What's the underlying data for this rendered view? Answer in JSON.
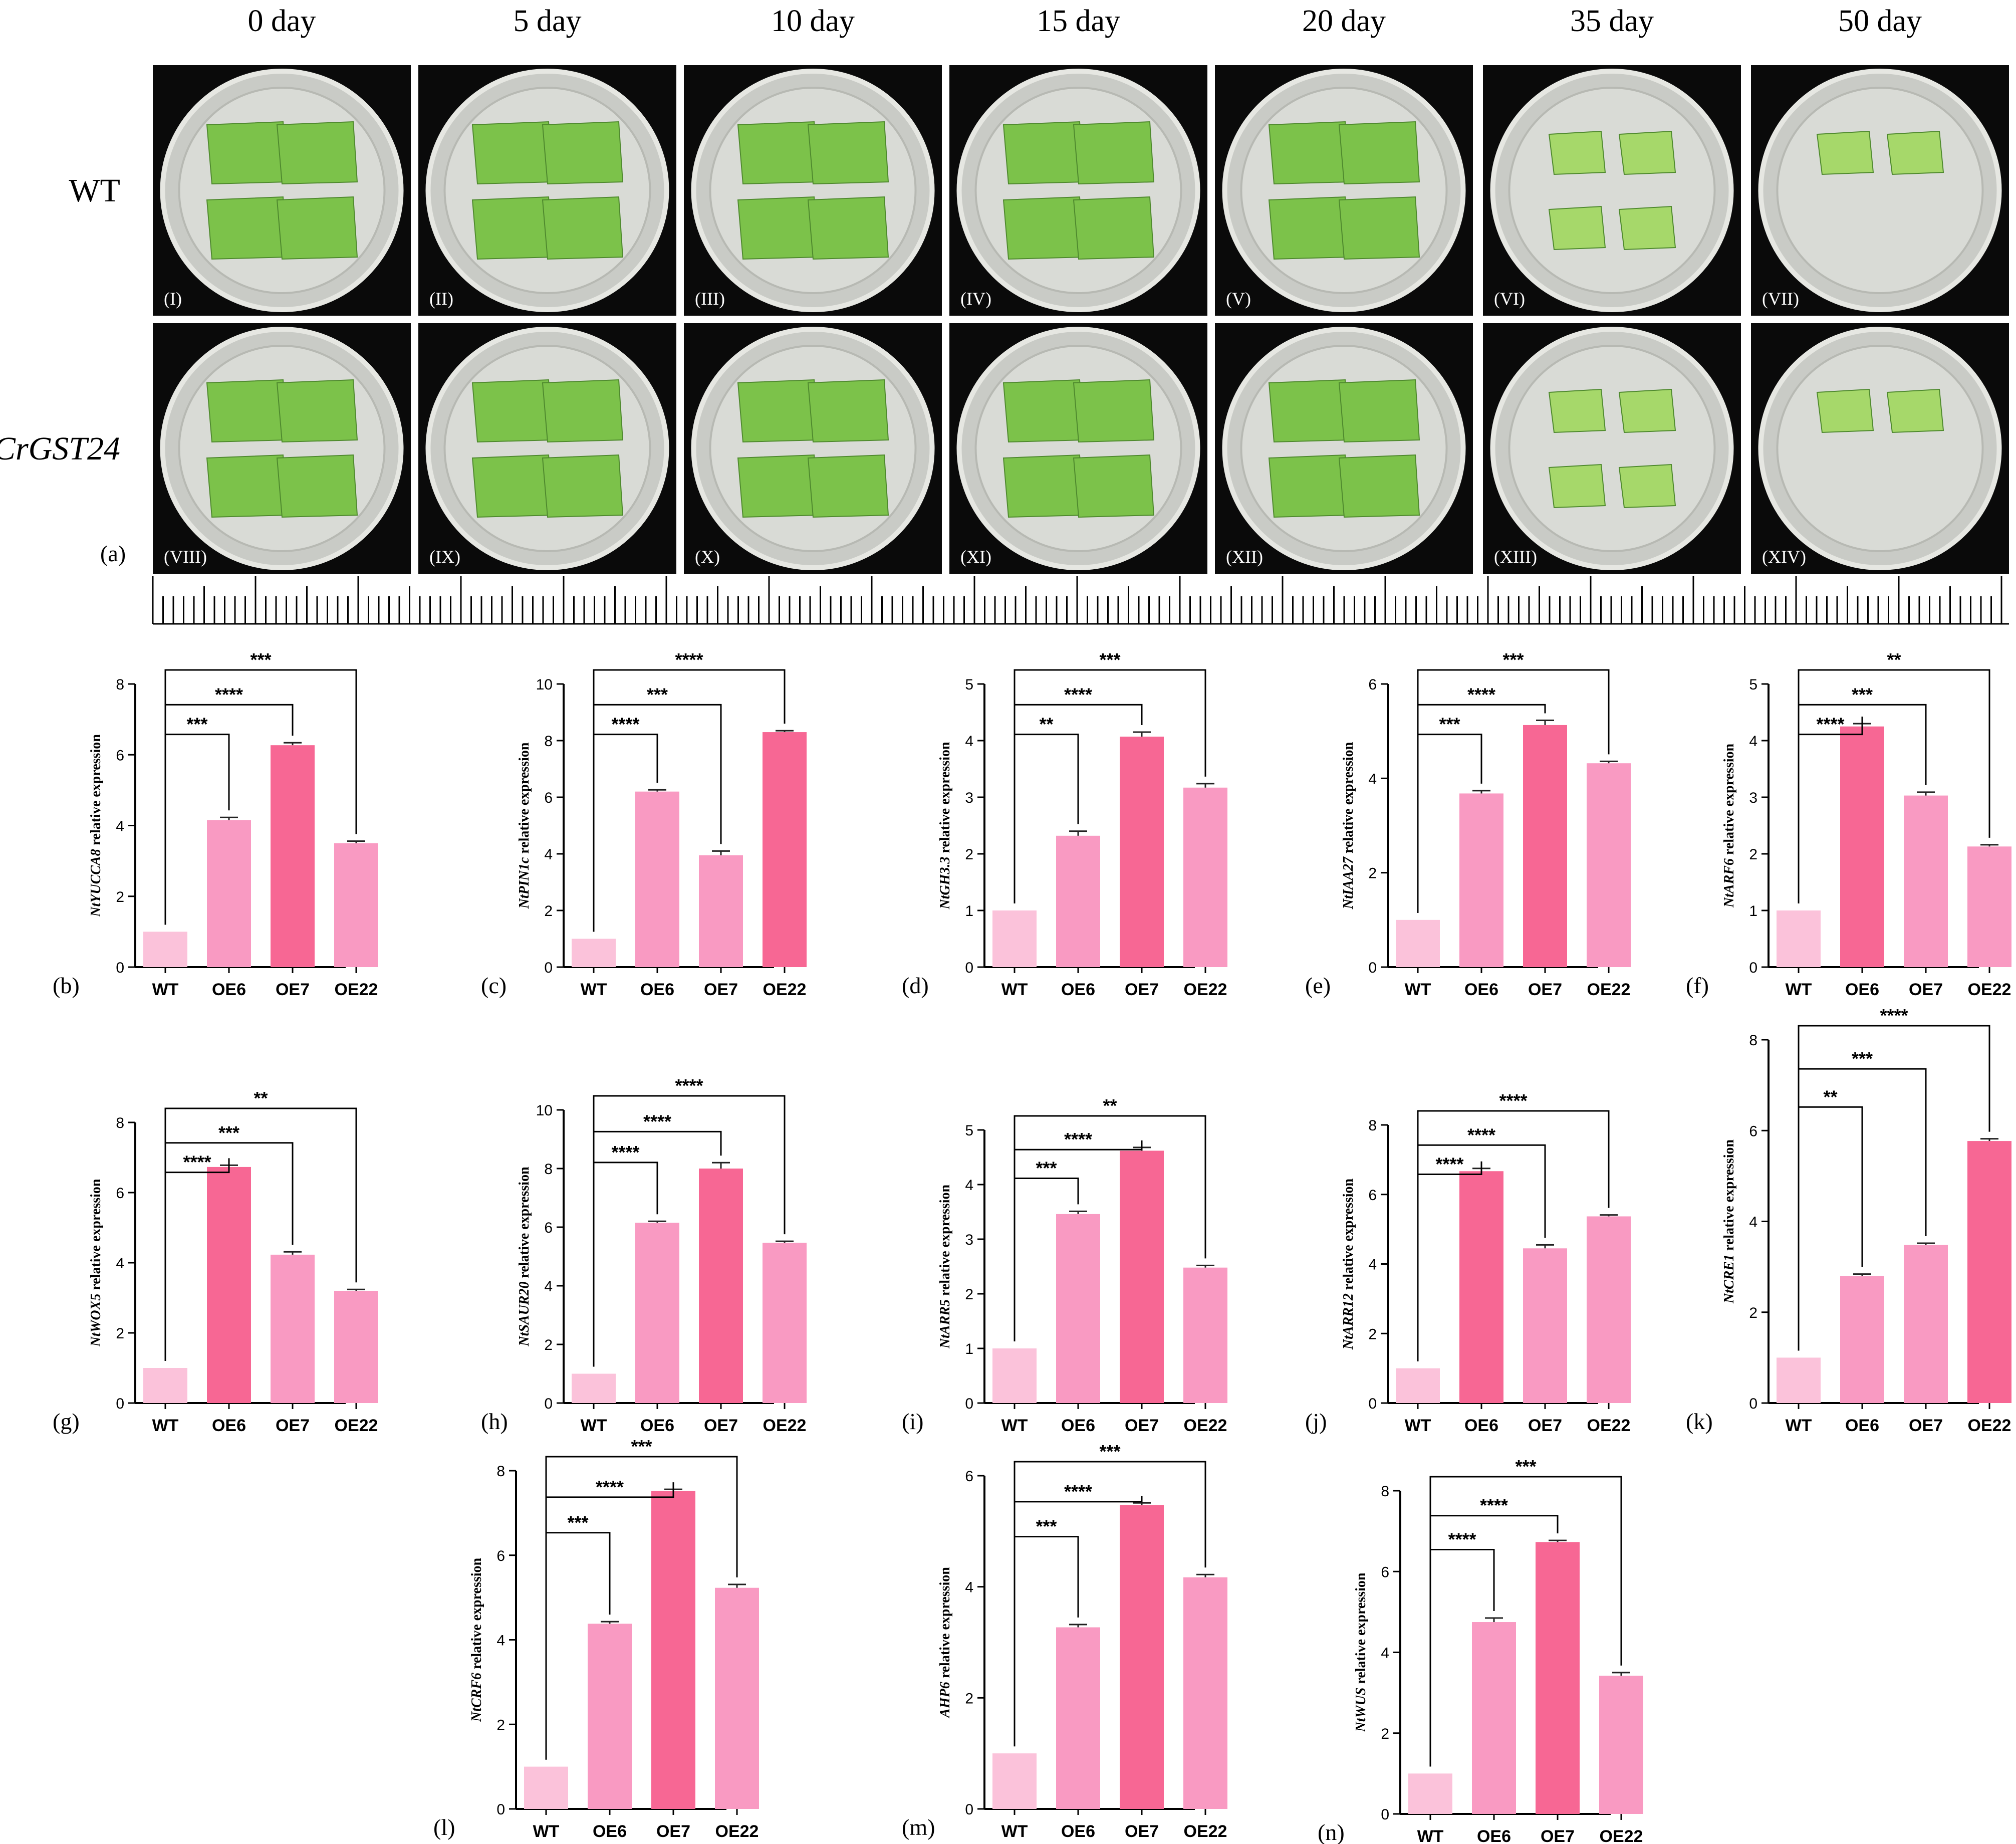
{
  "photos": {
    "days": [
      "0 day",
      "5 day",
      "10 day",
      "15 day",
      "20 day",
      "35 day",
      "50 day"
    ],
    "rows": [
      {
        "label": "WT",
        "italic": false,
        "numerals": [
          "(I)",
          "(II)",
          "(III)",
          "(IV)",
          "(V)",
          "(VI)",
          "(VII)"
        ]
      },
      {
        "label": "CrGST24",
        "italic": true,
        "numerals": [
          "(VIII)",
          "(IX)",
          "(X)",
          "(XI)",
          "(XII)",
          "(XIII)",
          "(XIV)"
        ]
      }
    ],
    "panel_label": "(a)"
  },
  "colors": {
    "WT": "#fbc2da",
    "light": "#f99ac2",
    "dark": "#f76794",
    "error": "#222222",
    "photo_bg": "#0a0a0a",
    "leaf": "#7cc24a"
  },
  "chart_data": [
    {
      "type": "bar",
      "panel": "(b)",
      "gene": "NtYUCCA8",
      "ylabel_suffix": " relative expression",
      "categories": [
        "WT",
        "OE6",
        "OE7",
        "OE22"
      ],
      "values": [
        1.0,
        4.15,
        6.27,
        3.5
      ],
      "errors": [
        0,
        0.08,
        0.07,
        0.06
      ],
      "ylim": [
        0,
        8
      ],
      "yticks": [
        0,
        2,
        4,
        6,
        8
      ],
      "bar_colors": [
        "WT",
        "light",
        "dark",
        "light"
      ],
      "sig": [
        {
          "to": 1,
          "label": "***"
        },
        {
          "to": 2,
          "label": "****"
        },
        {
          "to": 3,
          "label": "***"
        }
      ]
    },
    {
      "type": "bar",
      "panel": "(c)",
      "gene": "NtPIN1c",
      "ylabel_suffix": " relative expression",
      "categories": [
        "WT",
        "OE6",
        "OE7",
        "OE22"
      ],
      "values": [
        1.0,
        6.2,
        3.95,
        8.3
      ],
      "errors": [
        0,
        0.06,
        0.15,
        0.05
      ],
      "ylim": [
        0,
        10
      ],
      "yticks": [
        0,
        2,
        4,
        6,
        8,
        10
      ],
      "bar_colors": [
        "WT",
        "light",
        "light",
        "dark"
      ],
      "sig": [
        {
          "to": 1,
          "label": "****"
        },
        {
          "to": 2,
          "label": "***"
        },
        {
          "to": 3,
          "label": "****"
        }
      ]
    },
    {
      "type": "bar",
      "panel": "(d)",
      "gene": "NtGH3.3",
      "ylabel_suffix": " relative expression",
      "categories": [
        "WT",
        "OE6",
        "OE7",
        "OE22"
      ],
      "values": [
        1.0,
        2.32,
        4.07,
        3.17
      ],
      "errors": [
        0,
        0.08,
        0.08,
        0.07
      ],
      "ylim": [
        0,
        5
      ],
      "yticks": [
        0,
        1,
        2,
        3,
        4,
        5
      ],
      "bar_colors": [
        "WT",
        "light",
        "dark",
        "light"
      ],
      "sig": [
        {
          "to": 1,
          "label": "**"
        },
        {
          "to": 2,
          "label": "****"
        },
        {
          "to": 3,
          "label": "***"
        }
      ]
    },
    {
      "type": "bar",
      "panel": "(e)",
      "gene": "NtIAA27",
      "ylabel_suffix": " relative expression",
      "categories": [
        "WT",
        "OE6",
        "OE7",
        "OE22"
      ],
      "values": [
        1.0,
        3.68,
        5.13,
        4.32
      ],
      "errors": [
        0,
        0.06,
        0.1,
        0.04
      ],
      "ylim": [
        0,
        6
      ],
      "yticks": [
        0,
        2,
        4,
        6
      ],
      "bar_colors": [
        "WT",
        "light",
        "dark",
        "light"
      ],
      "sig": [
        {
          "to": 1,
          "label": "***"
        },
        {
          "to": 2,
          "label": "****"
        },
        {
          "to": 3,
          "label": "***"
        }
      ]
    },
    {
      "type": "bar",
      "panel": "(f)",
      "gene": "NtARF6",
      "ylabel_suffix": " relative expression",
      "categories": [
        "WT",
        "OE6",
        "OE7",
        "OE22"
      ],
      "values": [
        1.0,
        4.25,
        3.03,
        2.13
      ],
      "errors": [
        0,
        0.05,
        0.06,
        0.03
      ],
      "ylim": [
        0,
        5
      ],
      "yticks": [
        0,
        1,
        2,
        3,
        4,
        5
      ],
      "bar_colors": [
        "WT",
        "dark",
        "light",
        "light"
      ],
      "sig": [
        {
          "to": 1,
          "label": "****"
        },
        {
          "to": 2,
          "label": "***"
        },
        {
          "to": 3,
          "label": "**"
        }
      ]
    },
    {
      "type": "bar",
      "panel": "(g)",
      "gene": "NtWOX5",
      "ylabel_suffix": " relative expression",
      "categories": [
        "WT",
        "OE6",
        "OE7",
        "OE22"
      ],
      "values": [
        1.0,
        6.73,
        4.23,
        3.2
      ],
      "errors": [
        0,
        0.05,
        0.08,
        0.04
      ],
      "ylim": [
        0,
        8
      ],
      "yticks": [
        0,
        2,
        4,
        6,
        8
      ],
      "bar_colors": [
        "WT",
        "dark",
        "light",
        "light"
      ],
      "sig": [
        {
          "to": 1,
          "label": "****"
        },
        {
          "to": 2,
          "label": "***"
        },
        {
          "to": 3,
          "label": "**"
        }
      ]
    },
    {
      "type": "bar",
      "panel": "(h)",
      "gene": "NtSAUR20",
      "ylabel_suffix": " relative expression",
      "categories": [
        "WT",
        "OE6",
        "OE7",
        "OE22"
      ],
      "values": [
        1.0,
        6.15,
        8.0,
        5.47
      ],
      "errors": [
        0,
        0.05,
        0.2,
        0.05
      ],
      "ylim": [
        0,
        10
      ],
      "yticks": [
        0,
        2,
        4,
        6,
        8,
        10
      ],
      "bar_colors": [
        "WT",
        "light",
        "dark",
        "light"
      ],
      "sig": [
        {
          "to": 1,
          "label": "****"
        },
        {
          "to": 2,
          "label": "****"
        },
        {
          "to": 3,
          "label": "****"
        }
      ]
    },
    {
      "type": "bar",
      "panel": "(i)",
      "gene": "NtARR5",
      "ylabel_suffix": " relative expression",
      "categories": [
        "WT",
        "OE6",
        "OE7",
        "OE22"
      ],
      "values": [
        1.0,
        3.46,
        4.62,
        2.48
      ],
      "errors": [
        0,
        0.05,
        0.06,
        0.04
      ],
      "ylim": [
        0,
        5
      ],
      "yticks": [
        0,
        1,
        2,
        3,
        4,
        5
      ],
      "bar_colors": [
        "WT",
        "light",
        "dark",
        "light"
      ],
      "sig": [
        {
          "to": 1,
          "label": "***"
        },
        {
          "to": 2,
          "label": "****"
        },
        {
          "to": 3,
          "label": "**"
        }
      ]
    },
    {
      "type": "bar",
      "panel": "(j)",
      "gene": "NtARR12",
      "ylabel_suffix": " relative expression",
      "categories": [
        "WT",
        "OE6",
        "OE7",
        "OE22"
      ],
      "values": [
        1.0,
        6.67,
        4.45,
        5.37
      ],
      "errors": [
        0,
        0.08,
        0.1,
        0.04
      ],
      "ylim": [
        0,
        8
      ],
      "yticks": [
        0,
        2,
        4,
        6,
        8
      ],
      "bar_colors": [
        "WT",
        "dark",
        "light",
        "light"
      ],
      "sig": [
        {
          "to": 1,
          "label": "****"
        },
        {
          "to": 2,
          "label": "****"
        },
        {
          "to": 3,
          "label": "****"
        }
      ]
    },
    {
      "type": "bar",
      "panel": "(k)",
      "gene": "NtCRE1",
      "ylabel_suffix": " relative expression",
      "categories": [
        "WT",
        "OE6",
        "OE7",
        "OE22"
      ],
      "values": [
        1.0,
        2.8,
        3.48,
        5.77
      ],
      "errors": [
        0,
        0.04,
        0.04,
        0.05
      ],
      "ylim": [
        0,
        8
      ],
      "yticks": [
        0,
        2,
        4,
        6,
        8
      ],
      "bar_colors": [
        "WT",
        "light",
        "light",
        "dark"
      ],
      "sig": [
        {
          "to": 1,
          "label": "**"
        },
        {
          "to": 2,
          "label": "***"
        },
        {
          "to": 3,
          "label": "****"
        }
      ]
    },
    {
      "type": "bar",
      "panel": "(l)",
      "gene": "NtCRF6",
      "ylabel_suffix": " relative expression",
      "categories": [
        "WT",
        "OE6",
        "OE7",
        "OE22"
      ],
      "values": [
        1.0,
        4.38,
        7.52,
        5.23
      ],
      "errors": [
        0,
        0.05,
        0.04,
        0.08
      ],
      "ylim": [
        0,
        8
      ],
      "yticks": [
        0,
        2,
        4,
        6,
        8
      ],
      "bar_colors": [
        "WT",
        "light",
        "dark",
        "light"
      ],
      "sig": [
        {
          "to": 1,
          "label": "***"
        },
        {
          "to": 2,
          "label": "****"
        },
        {
          "to": 3,
          "label": "***"
        }
      ]
    },
    {
      "type": "bar",
      "panel": "(m)",
      "gene": "AHP6",
      "ylabel_suffix": " relative expression",
      "categories": [
        "WT",
        "OE6",
        "OE7",
        "OE22"
      ],
      "values": [
        1.0,
        3.27,
        5.47,
        4.17
      ],
      "errors": [
        0,
        0.05,
        0.04,
        0.05
      ],
      "ylim": [
        0,
        6
      ],
      "yticks": [
        0,
        2,
        4,
        6
      ],
      "bar_colors": [
        "WT",
        "light",
        "dark",
        "light"
      ],
      "sig": [
        {
          "to": 1,
          "label": "***"
        },
        {
          "to": 2,
          "label": "****"
        },
        {
          "to": 3,
          "label": "***"
        }
      ]
    },
    {
      "type": "bar",
      "panel": "(n)",
      "gene": "NtWUS",
      "ylabel_suffix": " relative expression",
      "categories": [
        "WT",
        "OE6",
        "OE7",
        "OE22"
      ],
      "values": [
        1.0,
        4.75,
        6.73,
        3.42
      ],
      "errors": [
        0,
        0.1,
        0.04,
        0.08
      ],
      "ylim": [
        0,
        8
      ],
      "yticks": [
        0,
        2,
        4,
        6,
        8
      ],
      "bar_colors": [
        "WT",
        "light",
        "dark",
        "light"
      ],
      "sig": [
        {
          "to": 1,
          "label": "****"
        },
        {
          "to": 2,
          "label": "****"
        },
        {
          "to": 3,
          "label": "***"
        }
      ]
    }
  ]
}
